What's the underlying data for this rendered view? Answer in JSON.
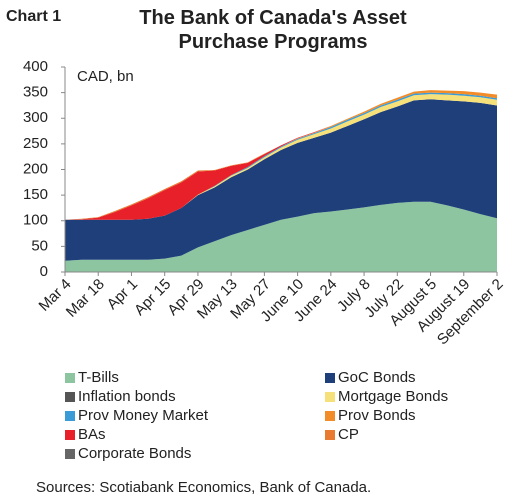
{
  "chart_data": {
    "type": "stacked_area",
    "label": "Chart 1",
    "title": "The Bank of Canada's Asset Purchase Programs",
    "annotation": "CAD, bn",
    "source": "Sources: Scotiabank Economics, Bank of Canada.",
    "categories": [
      "Mar 4",
      null,
      "Mar 18",
      null,
      "Apr 1",
      null,
      "Apr 15",
      null,
      "Apr 29",
      null,
      "May 13",
      null,
      "May 27",
      null,
      "June 10",
      null,
      "June 24",
      null,
      "July 8",
      null,
      "July 22",
      null,
      "August 5",
      null,
      "August 19",
      null,
      "September 2"
    ],
    "ylim": [
      0,
      400
    ],
    "yticks": [
      0,
      50,
      100,
      150,
      200,
      250,
      300,
      350,
      400
    ],
    "series": [
      {
        "name": "T-Bills",
        "color": "#8cc5a0",
        "values": [
          22,
          24,
          24,
          24,
          24,
          24,
          26,
          32,
          48,
          60,
          72,
          82,
          92,
          102,
          108,
          115,
          118,
          122,
          126,
          131,
          135,
          137,
          137,
          130,
          122,
          113,
          105
        ]
      },
      {
        "name": "GoC Bonds",
        "color": "#1f3f7a",
        "values": [
          80,
          78,
          78,
          78,
          78,
          80,
          84,
          93,
          102,
          105,
          113,
          118,
          128,
          136,
          144,
          147,
          154,
          163,
          172,
          181,
          188,
          198,
          200,
          205,
          211,
          217,
          220
        ]
      },
      {
        "name": "Inflation bonds",
        "color": "#555555",
        "values": [
          0,
          0,
          0,
          0,
          0,
          0,
          0,
          0,
          0,
          0,
          0,
          0,
          0,
          0,
          0,
          0,
          0,
          0,
          0,
          0,
          0,
          0,
          0,
          0,
          0,
          0,
          0
        ]
      },
      {
        "name": "Mortgage Bonds",
        "color": "#f5e07a",
        "values": [
          0,
          0,
          0,
          0,
          0,
          0,
          0,
          0,
          1,
          2,
          3,
          3,
          4,
          5,
          6,
          7,
          8,
          9,
          9,
          10,
          10,
          10,
          10,
          11,
          11,
          11,
          11
        ]
      },
      {
        "name": "Prov Money Market",
        "color": "#3b9bd6",
        "values": [
          0,
          0,
          0,
          0,
          0,
          0,
          0,
          0,
          0,
          1,
          1,
          2,
          2,
          2,
          2,
          2,
          3,
          3,
          3,
          3,
          3,
          3,
          3,
          3,
          3,
          3,
          3
        ]
      },
      {
        "name": "Prov Bonds",
        "color": "#f28c28",
        "values": [
          0,
          0,
          0,
          0,
          0,
          0,
          0,
          0,
          0,
          0,
          0,
          0,
          0,
          0,
          1,
          1,
          2,
          2,
          3,
          3,
          4,
          4,
          5,
          5,
          6,
          6,
          7
        ]
      },
      {
        "name": "BAs",
        "color": "#e8202a",
        "values": [
          0,
          1,
          4,
          15,
          28,
          40,
          50,
          50,
          45,
          30,
          18,
          8,
          4,
          2,
          1,
          1,
          0,
          0,
          0,
          0,
          0,
          0,
          0,
          0,
          0,
          0,
          0
        ]
      },
      {
        "name": "CP",
        "color": "#e87b30",
        "values": [
          0,
          1,
          1,
          2,
          2,
          2,
          2,
          2,
          2,
          1,
          1,
          1,
          1,
          0,
          0,
          0,
          0,
          0,
          0,
          0,
          0,
          0,
          0,
          0,
          0,
          0,
          0
        ]
      },
      {
        "name": "Corporate Bonds",
        "color": "#666666",
        "values": [
          0,
          0,
          0,
          0,
          0,
          0,
          0,
          0,
          0,
          0,
          0,
          0,
          0,
          0,
          0,
          0,
          0,
          0,
          0,
          0,
          0,
          0,
          0,
          0,
          0,
          0,
          0
        ]
      }
    ]
  }
}
